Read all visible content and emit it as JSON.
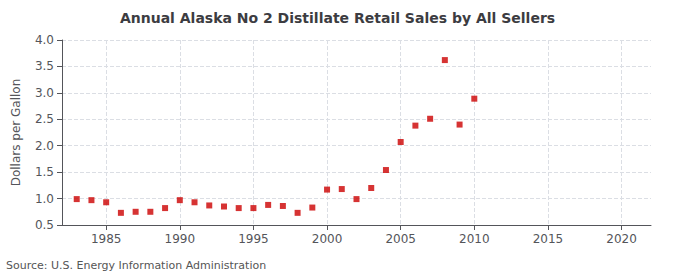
{
  "chart_data": {
    "type": "scatter",
    "title": "Annual Alaska No 2 Distillate Retail Sales by All Sellers",
    "ylabel": "Dollars per Gallon",
    "annotation": "Source: U.S. Energy Information Administration",
    "color": "#cc0000",
    "marker": "square",
    "grid": true,
    "x": [
      1983,
      1984,
      1985,
      1986,
      1987,
      1988,
      1989,
      1990,
      1991,
      1992,
      1993,
      1994,
      1995,
      1996,
      1997,
      1998,
      1999,
      2000,
      2001,
      2002,
      2003,
      2004,
      2005,
      2006,
      2007,
      2008,
      2009,
      2010
    ],
    "values": [
      0.99,
      0.97,
      0.93,
      0.73,
      0.75,
      0.75,
      0.82,
      0.97,
      0.93,
      0.87,
      0.85,
      0.82,
      0.82,
      0.88,
      0.86,
      0.73,
      0.83,
      1.17,
      1.18,
      0.99,
      1.2,
      1.54,
      2.07,
      2.38,
      2.51,
      3.62,
      2.4,
      2.89
    ],
    "xlim": [
      1982,
      2022
    ],
    "xticks": [
      1985,
      1990,
      1995,
      2000,
      2005,
      2010,
      2015,
      2020
    ],
    "ylim": [
      0.5,
      4.0
    ],
    "yticks": [
      0.5,
      {
        "value": 1.0,
        "label": "1.0"
      },
      1.5,
      {
        "value": 2.0,
        "label": "2.0"
      },
      2.5,
      {
        "value": 3.0,
        "label": "3.0"
      },
      3.5,
      {
        "value": 4.0,
        "label": "4.0"
      }
    ]
  }
}
